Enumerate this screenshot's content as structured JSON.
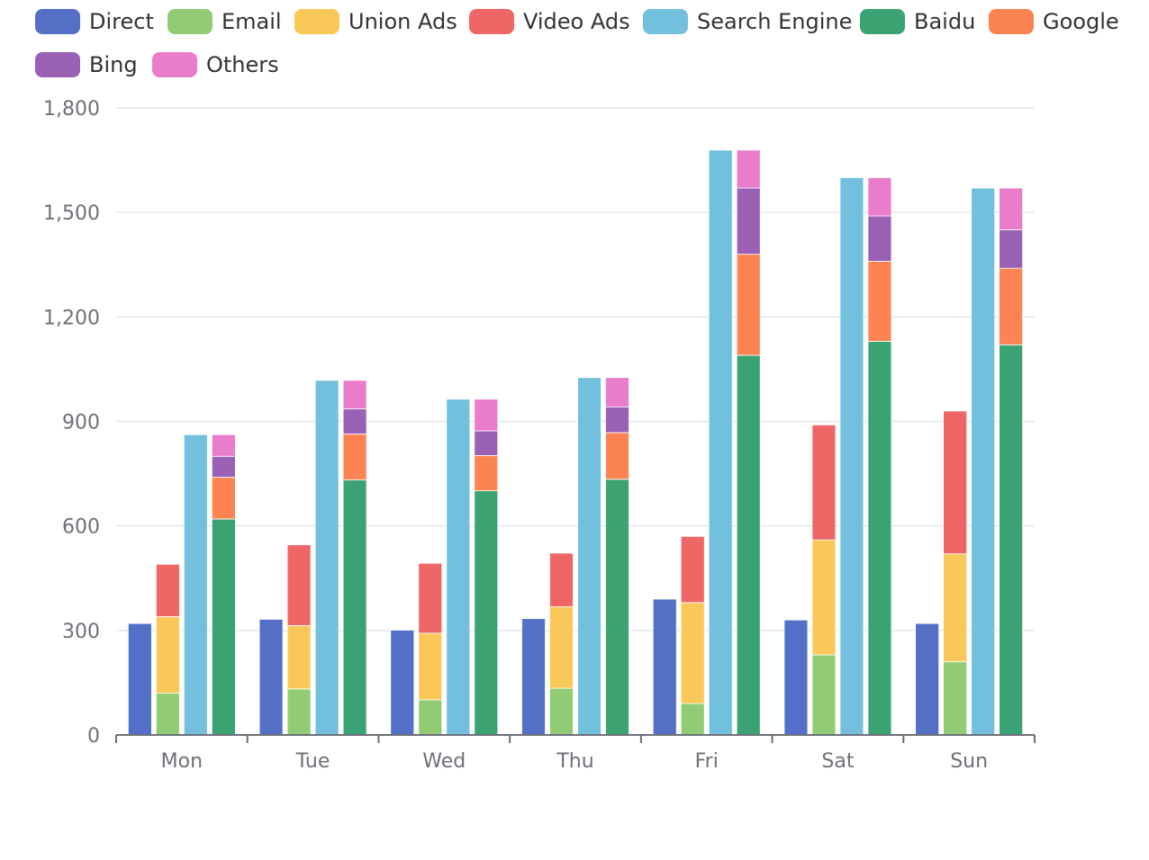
{
  "chart_data": {
    "type": "bar",
    "stacked_groups": true,
    "categories": [
      "Mon",
      "Tue",
      "Wed",
      "Thu",
      "Fri",
      "Sat",
      "Sun"
    ],
    "ylim": [
      0,
      1800
    ],
    "yticks": [
      0,
      300,
      600,
      900,
      1200,
      1500,
      1800
    ],
    "ytick_labels": [
      "0",
      "300",
      "600",
      "900",
      "1,200",
      "1,500",
      "1,800"
    ],
    "legend_position": "top",
    "series": [
      {
        "name": "Direct",
        "stack": "Direct",
        "color": "#5470c6",
        "values": [
          320,
          332,
          301,
          334,
          390,
          330,
          320
        ]
      },
      {
        "name": "Email",
        "stack": "Ad",
        "color": "#91cc75",
        "values": [
          120,
          132,
          101,
          134,
          90,
          230,
          210
        ]
      },
      {
        "name": "Union Ads",
        "stack": "Ad",
        "color": "#fac858",
        "values": [
          220,
          182,
          191,
          234,
          290,
          330,
          310
        ]
      },
      {
        "name": "Video Ads",
        "stack": "Ad",
        "color": "#ee6666",
        "values": [
          150,
          232,
          201,
          154,
          190,
          330,
          410
        ]
      },
      {
        "name": "Search Engine",
        "stack": "SearchEngine",
        "color": "#73c0de",
        "values": [
          862,
          1018,
          964,
          1026,
          1679,
          1600,
          1570
        ]
      },
      {
        "name": "Baidu",
        "stack": "Search",
        "color": "#3ba272",
        "values": [
          620,
          732,
          701,
          734,
          1090,
          1130,
          1120
        ]
      },
      {
        "name": "Google",
        "stack": "Search",
        "color": "#fc8452",
        "values": [
          120,
          132,
          101,
          134,
          290,
          230,
          220
        ]
      },
      {
        "name": "Bing",
        "stack": "Search",
        "color": "#9a60b4",
        "values": [
          60,
          72,
          71,
          74,
          190,
          130,
          110
        ]
      },
      {
        "name": "Others",
        "stack": "Search",
        "color": "#ea7ccc",
        "values": [
          62,
          82,
          91,
          84,
          109,
          110,
          120
        ]
      }
    ]
  }
}
